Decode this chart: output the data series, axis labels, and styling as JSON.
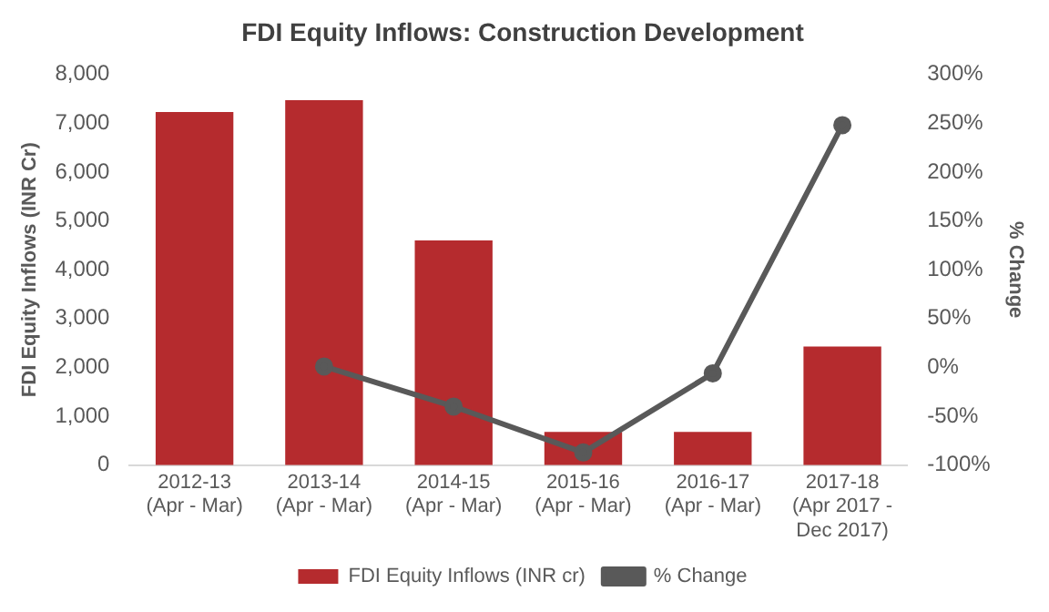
{
  "chart_data": {
    "type": "bar",
    "title": "FDI Equity Inflows: Construction Development",
    "ylabel": "FDI Equity Inflows (INR Cr)",
    "y2label": "% Change",
    "categories": [
      "2012-13\n(Apr - Mar)",
      "2013-14\n(Apr - Mar)",
      "2014-15\n(Apr - Mar)",
      "2015-16\n(Apr - Mar)",
      "2016-17\n(Apr - Mar)",
      "2017-18\n(Apr 2017 -\nDec 2017)"
    ],
    "series": [
      {
        "name": "FDI Equity Inflows (INR cr)",
        "color": "#b52b2e",
        "values": [
          7230,
          7470,
          4600,
          680,
          680,
          2430
        ]
      },
      {
        "name": "% Change",
        "type": "line",
        "axis": "y2",
        "color": "#595959",
        "marker": "circle",
        "values": [
          null,
          1,
          -40,
          -87,
          -6,
          248
        ]
      }
    ],
    "ylim": [
      0,
      8000
    ],
    "yticks": [
      {
        "value": 0,
        "label": "0"
      },
      {
        "value": 1000,
        "label": "1,000"
      },
      {
        "value": 2000,
        "label": "2,000"
      },
      {
        "value": 3000,
        "label": "3,000"
      },
      {
        "value": 4000,
        "label": "4,000"
      },
      {
        "value": 5000,
        "label": "5,000"
      },
      {
        "value": 6000,
        "label": "6,000"
      },
      {
        "value": 7000,
        "label": "7,000"
      },
      {
        "value": 8000,
        "label": "8,000"
      }
    ],
    "y2lim": [
      -100,
      300
    ],
    "y2ticks": [
      {
        "value": -100,
        "label": "-100%"
      },
      {
        "value": -50,
        "label": "-50%"
      },
      {
        "value": 0,
        "label": "0%"
      },
      {
        "value": 50,
        "label": "50%"
      },
      {
        "value": 100,
        "label": "100%"
      },
      {
        "value": 150,
        "label": "150%"
      },
      {
        "value": 200,
        "label": "200%"
      },
      {
        "value": 250,
        "label": "250%"
      },
      {
        "value": 300,
        "label": "300%"
      }
    ],
    "grid": false,
    "legend": "bottom"
  }
}
